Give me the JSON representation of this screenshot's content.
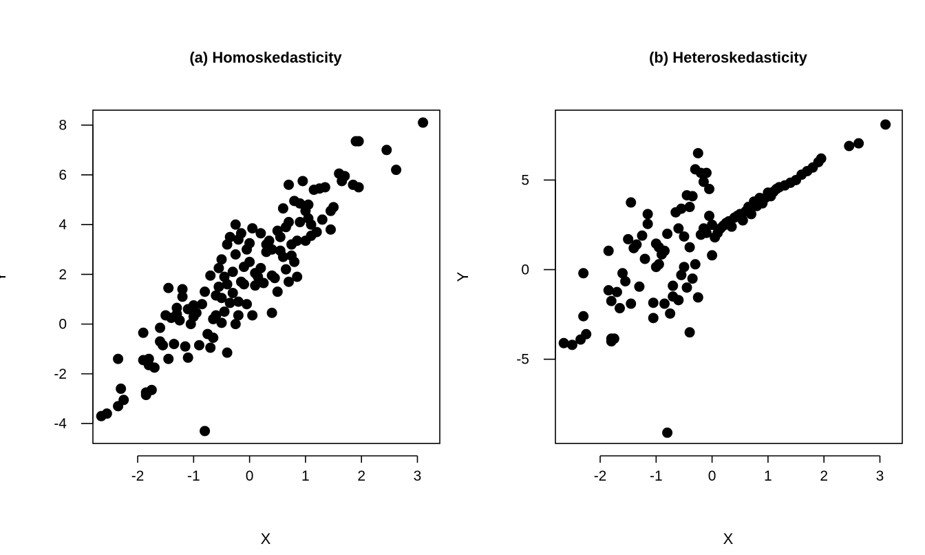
{
  "chart_data": [
    {
      "type": "scatter",
      "title": "(a) Homoskedasticity",
      "xlabel": "X",
      "ylabel": "Y",
      "xlim": [
        -2.8,
        3.4
      ],
      "ylim": [
        -4.8,
        8.6
      ],
      "xticks": [
        -2,
        -1,
        0,
        1,
        2,
        3
      ],
      "yticks": [
        -4,
        -2,
        0,
        2,
        4,
        6,
        8
      ],
      "grid": false,
      "marker_color": "#000000",
      "x": [
        -2.65,
        -2.55,
        -2.35,
        -2.35,
        -2.3,
        -2.25,
        -1.9,
        -1.9,
        -1.85,
        -1.85,
        -1.8,
        -1.8,
        -1.75,
        -1.7,
        -1.6,
        -1.6,
        -1.55,
        -1.5,
        -1.45,
        -1.45,
        -1.4,
        -1.35,
        -1.3,
        -1.3,
        -1.25,
        -1.2,
        -1.2,
        -1.15,
        -1.1,
        -1.1,
        -1.05,
        -1.0,
        -1.0,
        -0.95,
        -0.9,
        -0.85,
        -0.8,
        -0.75,
        -0.7,
        -0.7,
        -0.65,
        -0.65,
        -0.6,
        -0.6,
        -0.55,
        -0.55,
        -0.5,
        -0.5,
        -0.5,
        -0.45,
        -0.45,
        -0.4,
        -0.4,
        -0.4,
        -0.35,
        -0.35,
        -0.3,
        -0.3,
        -0.25,
        -0.25,
        -0.25,
        -0.2,
        -0.2,
        -0.2,
        -0.15,
        -0.15,
        -0.1,
        -0.1,
        -0.05,
        -0.05,
        0.0,
        0.0,
        0.05,
        0.05,
        0.1,
        0.1,
        0.15,
        0.2,
        0.2,
        0.25,
        0.3,
        0.3,
        0.35,
        0.4,
        0.4,
        0.4,
        0.45,
        0.5,
        0.5,
        0.55,
        0.55,
        0.6,
        0.6,
        0.65,
        0.65,
        0.7,
        0.7,
        0.7,
        0.75,
        0.75,
        0.8,
        0.8,
        0.85,
        0.85,
        0.9,
        0.9,
        0.95,
        1.0,
        1.0,
        1.05,
        1.05,
        1.1,
        1.1,
        1.15,
        1.2,
        1.25,
        1.3,
        1.35,
        1.45,
        1.45,
        1.5,
        1.6,
        1.65,
        1.7,
        1.85,
        1.9,
        1.95,
        1.95,
        2.45,
        2.62,
        3.1,
        -0.8
      ],
      "y": [
        -3.7,
        -3.6,
        -3.3,
        -1.4,
        -2.6,
        -3.05,
        -0.35,
        -1.45,
        -2.85,
        -2.75,
        -1.4,
        -1.65,
        -2.65,
        -1.75,
        -0.7,
        -0.15,
        -0.85,
        0.35,
        -1.4,
        1.45,
        0.25,
        -0.8,
        0.65,
        0.4,
        0.15,
        1.4,
        1.1,
        -0.9,
        0.6,
        -1.35,
        0.0,
        0.75,
        0.3,
        0.45,
        -0.85,
        0.8,
        1.3,
        -0.4,
        -0.95,
        1.95,
        -0.55,
        0.2,
        1.15,
        0.35,
        2.25,
        1.5,
        2.6,
        1.05,
        0.05,
        1.9,
        0.5,
        3.2,
        1.6,
        -1.15,
        3.5,
        0.85,
        1.25,
        2.1,
        4.0,
        2.8,
        0.0,
        3.4,
        0.9,
        0.35,
        3.65,
        1.7,
        2.3,
        1.6,
        3.0,
        0.8,
        3.25,
        2.5,
        3.85,
        0.35,
        2.05,
        1.55,
        1.9,
        3.65,
        2.25,
        1.65,
        3.2,
        2.9,
        3.35,
        3.0,
        1.95,
        0.45,
        1.85,
        3.75,
        1.3,
        2.95,
        3.5,
        2.7,
        4.65,
        3.9,
        2.2,
        5.6,
        4.1,
        1.7,
        3.2,
        2.75,
        4.95,
        2.5,
        3.35,
        1.9,
        4.85,
        4.1,
        5.75,
        4.55,
        3.35,
        4.25,
        4.8,
        3.55,
        4.0,
        5.4,
        3.7,
        5.45,
        4.2,
        5.5,
        4.55,
        3.8,
        4.7,
        6.05,
        5.75,
        5.95,
        5.6,
        7.35,
        7.35,
        5.5,
        7.0,
        6.2,
        8.1,
        -4.3
      ]
    },
    {
      "type": "scatter",
      "title": "(b) Heteroskedasticity",
      "xlabel": "X",
      "ylabel": "Y",
      "xlim": [
        -2.8,
        3.4
      ],
      "ylim": [
        -9.7,
        8.9
      ],
      "xticks": [
        -2,
        -1,
        0,
        1,
        2,
        3
      ],
      "yticks": [
        -5,
        0,
        5
      ],
      "grid": false,
      "marker_color": "#000000",
      "x": [
        -2.65,
        -2.5,
        -2.35,
        -2.3,
        -2.3,
        -2.25,
        -1.85,
        -1.85,
        -1.8,
        -1.8,
        -1.8,
        -1.75,
        -1.7,
        -1.65,
        -1.6,
        -1.55,
        -1.5,
        -1.45,
        -1.45,
        -1.4,
        -1.35,
        -1.3,
        -1.25,
        -1.2,
        -1.15,
        -1.15,
        -1.05,
        -1.05,
        -1.0,
        -1.0,
        -0.95,
        -0.95,
        -0.9,
        -0.85,
        -0.85,
        -0.8,
        -0.75,
        -0.7,
        -0.7,
        -0.65,
        -0.6,
        -0.6,
        -0.55,
        -0.55,
        -0.5,
        -0.5,
        -0.45,
        -0.45,
        -0.4,
        -0.4,
        -0.4,
        -0.35,
        -0.35,
        -0.3,
        -0.3,
        -0.25,
        -0.25,
        -0.2,
        -0.2,
        -0.15,
        -0.15,
        -0.1,
        -0.1,
        -0.05,
        -0.05,
        0.0,
        0.0,
        0.05,
        0.1,
        0.15,
        0.2,
        0.25,
        0.3,
        0.35,
        0.4,
        0.45,
        0.5,
        0.55,
        0.6,
        0.65,
        0.7,
        0.75,
        0.8,
        0.85,
        0.9,
        0.95,
        1.0,
        1.05,
        1.1,
        1.15,
        1.2,
        1.3,
        1.4,
        1.5,
        1.6,
        1.7,
        1.8,
        1.9,
        1.95,
        2.45,
        2.62,
        3.1,
        -0.8
      ],
      "y": [
        -4.1,
        -4.2,
        -3.9,
        -0.2,
        -2.6,
        -3.6,
        1.05,
        -1.15,
        -4.0,
        -3.85,
        -1.75,
        -3.85,
        -1.25,
        -2.15,
        -0.2,
        -0.65,
        1.7,
        -1.9,
        3.75,
        1.2,
        1.4,
        -0.95,
        1.9,
        0.6,
        3.1,
        2.55,
        -1.85,
        -2.7,
        1.45,
        0.15,
        0.3,
        1.25,
        0.85,
        -1.9,
        1.05,
        2.0,
        -2.45,
        -0.9,
        -1.5,
        3.2,
        -1.7,
        2.3,
        3.4,
        -0.3,
        1.85,
        0.15,
        4.15,
        -1.0,
        3.5,
        1.25,
        -3.5,
        4.1,
        -0.5,
        5.6,
        0.3,
        6.5,
        -1.55,
        5.4,
        1.95,
        4.9,
        2.3,
        5.4,
        2.05,
        4.5,
        3.0,
        0.8,
        2.5,
        1.8,
        2.05,
        2.3,
        2.45,
        2.6,
        2.7,
        2.4,
        2.9,
        3.0,
        3.1,
        2.75,
        3.25,
        3.5,
        3.1,
        3.8,
        3.55,
        4.0,
        3.7,
        4.0,
        4.3,
        4.1,
        4.35,
        4.5,
        4.6,
        4.7,
        4.85,
        5.0,
        5.3,
        5.5,
        5.7,
        6.0,
        6.2,
        6.9,
        7.05,
        8.1,
        -9.1
      ]
    }
  ]
}
